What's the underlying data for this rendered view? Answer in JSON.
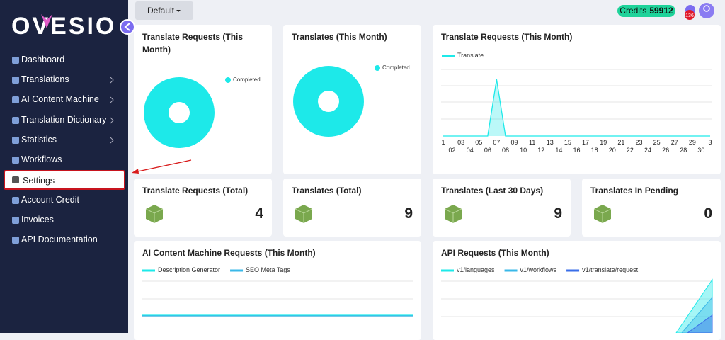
{
  "sidebar": {
    "logo": "OVESIO",
    "menu": [
      "Dashboard",
      "Translations",
      "AI Content Machine",
      "Translation Dictionary",
      "Statistics",
      "Workflows",
      "Settings",
      "Account Credit",
      "Invoices",
      "API Documentation"
    ],
    "submenu": [
      false,
      true,
      true,
      true,
      true,
      false,
      false,
      false,
      false,
      false
    ],
    "active_index": 6
  },
  "topbar": {
    "profile_button": "Default",
    "credits_label": "Credits",
    "credits": 59912,
    "notifications": 136
  },
  "donuts": [
    {
      "title": "Translate Requests (This Month)",
      "legend": "Completed",
      "color": "#1de9e9"
    },
    {
      "title": "Translates (This Month)",
      "legend": "Completed",
      "color": "#1de9e9"
    }
  ],
  "line_chart": {
    "type": "line",
    "title": "Translate Requests (This Month)",
    "categories": [
      "1",
      "02",
      "03",
      "04",
      "05",
      "06",
      "07",
      "08",
      "09",
      "10",
      "11",
      "12",
      "13",
      "14",
      "15",
      "16",
      "17",
      "18",
      "19",
      "20",
      "21",
      "22",
      "23",
      "24",
      "25",
      "26",
      "27",
      "28",
      "29",
      "30",
      "3"
    ],
    "series": [
      {
        "name": "Translate",
        "color": "#1de9e9",
        "values": [
          0,
          0,
          0,
          0,
          0,
          0,
          3.4,
          0,
          0,
          0,
          0,
          0,
          0,
          0,
          0,
          0,
          0,
          0,
          0,
          0,
          0,
          0,
          0,
          0,
          0,
          0,
          0,
          0,
          0,
          0,
          0
        ]
      }
    ],
    "ylim": [
      0,
      4
    ]
  },
  "stats": [
    {
      "title": "Translate Requests (Total)",
      "value": 4
    },
    {
      "title": "Translates (Total)",
      "value": 9
    },
    {
      "title": "Translates (Last 30 Days)",
      "value": 9
    },
    {
      "title": "Translates In Pending",
      "value": 0
    }
  ],
  "bottom": [
    {
      "title": "AI Content Machine Requests (This Month)",
      "series": [
        {
          "name": "Description Generator",
          "color": "#1de9e9"
        },
        {
          "name": "SEO Meta Tags",
          "color": "#3ab8e8"
        }
      ]
    },
    {
      "title": "API Requests (This Month)",
      "series": [
        {
          "name": "v1/languages",
          "color": "#1de9e9"
        },
        {
          "name": "v1/workflows",
          "color": "#3ab8e8"
        },
        {
          "name": "v1/translate/request",
          "color": "#3a6ee8"
        }
      ]
    }
  ]
}
